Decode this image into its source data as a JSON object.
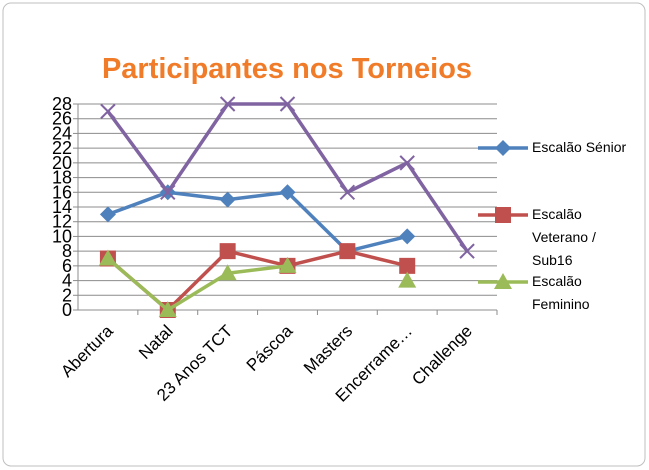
{
  "chart_data": {
    "type": "line",
    "title": "Participantes nos Torneios",
    "categories": [
      "Abertura",
      "Natal",
      "23 Anos TCT",
      "Páscoa",
      "Masters",
      "Encerrame…",
      "Challenge"
    ],
    "series": [
      {
        "name": "Escalão Sénior",
        "color": "#4f81bd",
        "marker": "diamond",
        "values": [
          13,
          16,
          15,
          16,
          8,
          10,
          null
        ]
      },
      {
        "name": "Escalão Veterano / Sub16",
        "color": "#c0504d",
        "marker": "square",
        "values": [
          7,
          0,
          8,
          6,
          8,
          6,
          null
        ]
      },
      {
        "name": "Escalão Feminino",
        "color": "#9bbb59",
        "marker": "triangle",
        "values": [
          7,
          0,
          5,
          6,
          null,
          4,
          null
        ]
      },
      {
        "color": "#8064a2",
        "marker": "x",
        "values": [
          27,
          16,
          28,
          28,
          16,
          20,
          8
        ]
      }
    ],
    "ylim": [
      0,
      28
    ],
    "yticks": [
      0,
      2,
      4,
      6,
      8,
      10,
      12,
      14,
      16,
      18,
      20,
      22,
      24,
      26,
      28
    ],
    "grid": true,
    "legend": "right"
  }
}
